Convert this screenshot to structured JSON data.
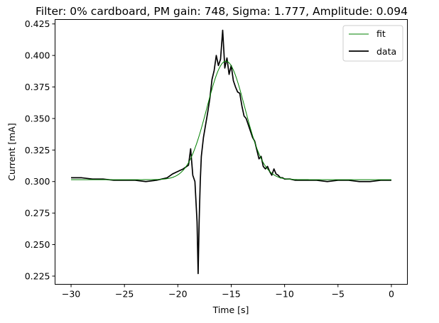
{
  "chart_data": {
    "type": "line",
    "title": "Filter: 0% cardboard, PM gain: 748, Sigma: 1.777, Amplitude: 0.094",
    "xlabel": "Time [s]",
    "ylabel": "Current [mA]",
    "xlim": [
      -31.5,
      1.5
    ],
    "ylim": [
      0.2185,
      0.4285
    ],
    "xticks": [
      -30,
      -25,
      -20,
      -15,
      -10,
      -5,
      0
    ],
    "xtick_labels": [
      "−30",
      "−25",
      "−20",
      "−15",
      "−10",
      "−5",
      "0"
    ],
    "yticks": [
      0.225,
      0.25,
      0.275,
      0.3,
      0.325,
      0.35,
      0.375,
      0.4,
      0.425
    ],
    "ytick_labels": [
      "0.225",
      "0.250",
      "0.275",
      "0.300",
      "0.325",
      "0.350",
      "0.375",
      "0.400",
      "0.425"
    ],
    "grid": false,
    "legend_position": "top-right",
    "legend": [
      {
        "label": "fit",
        "color": "#008000"
      },
      {
        "label": "data",
        "color": "#000000"
      }
    ],
    "series": [
      {
        "name": "fit",
        "color": "#008000",
        "model": "gaussian",
        "center": -15.5,
        "sigma": 1.777,
        "amplitude": 0.094,
        "baseline": 0.3015,
        "x_range": [
          -30,
          0
        ]
      },
      {
        "name": "data",
        "color": "#000000",
        "x": [
          -30,
          -29,
          -28,
          -27,
          -26,
          -25,
          -24,
          -23,
          -22,
          -21.5,
          -21,
          -20.5,
          -20,
          -19.5,
          -19,
          -18.8,
          -18.6,
          -18.4,
          -18.2,
          -18.1,
          -18.0,
          -17.9,
          -17.8,
          -17.6,
          -17.4,
          -17.2,
          -17.0,
          -16.8,
          -16.6,
          -16.4,
          -16.2,
          -16.0,
          -15.8,
          -15.6,
          -15.4,
          -15.2,
          -15.0,
          -14.8,
          -14.6,
          -14.4,
          -14.2,
          -14.0,
          -13.8,
          -13.6,
          -13.4,
          -13.2,
          -13.0,
          -12.8,
          -12.6,
          -12.4,
          -12.2,
          -12.0,
          -11.8,
          -11.6,
          -11.4,
          -11.2,
          -11.0,
          -10.8,
          -10.6,
          -10.4,
          -10.2,
          -10.0,
          -9.5,
          -9.0,
          -8.5,
          -8.0,
          -7.0,
          -6.0,
          -5.0,
          -4.0,
          -3.0,
          -2.0,
          -1.0,
          0
        ],
        "y": [
          0.303,
          0.303,
          0.302,
          0.302,
          0.301,
          0.301,
          0.301,
          0.3,
          0.301,
          0.302,
          0.303,
          0.306,
          0.308,
          0.31,
          0.313,
          0.326,
          0.305,
          0.3,
          0.268,
          0.227,
          0.27,
          0.3,
          0.32,
          0.335,
          0.345,
          0.355,
          0.366,
          0.381,
          0.388,
          0.4,
          0.392,
          0.397,
          0.42,
          0.39,
          0.398,
          0.385,
          0.392,
          0.38,
          0.375,
          0.371,
          0.37,
          0.36,
          0.352,
          0.35,
          0.345,
          0.34,
          0.335,
          0.332,
          0.325,
          0.318,
          0.32,
          0.312,
          0.31,
          0.312,
          0.308,
          0.305,
          0.31,
          0.306,
          0.305,
          0.303,
          0.303,
          0.302,
          0.302,
          0.301,
          0.301,
          0.301,
          0.301,
          0.3,
          0.301,
          0.301,
          0.3,
          0.3,
          0.301,
          0.301
        ]
      }
    ]
  }
}
